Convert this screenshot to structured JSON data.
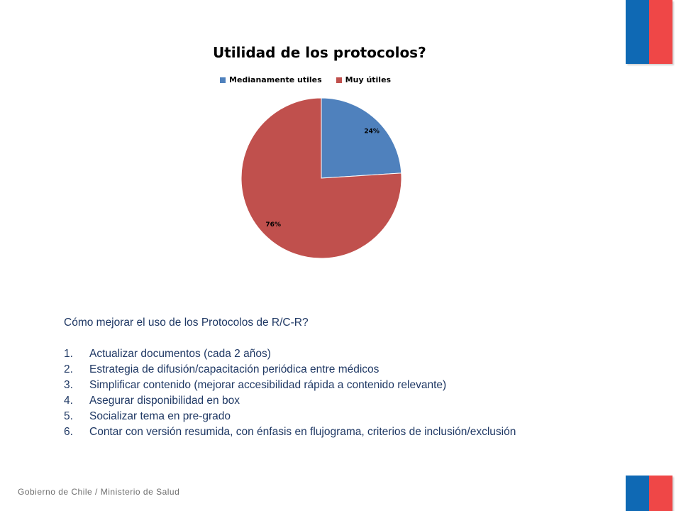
{
  "colors": {
    "flag_blue": "#0f69b4",
    "flag_red": "#ef4747",
    "slice_blue": "#4f81bd",
    "slice_red": "#c0504d",
    "text_navy": "#1f3864"
  },
  "chart_data": {
    "type": "pie",
    "title": "Utilidad de los protocolos?",
    "legend_position": "top",
    "categories": [
      "Medianamente utiles",
      "Muy útiles"
    ],
    "values": [
      24,
      76
    ],
    "data_labels": [
      "24%",
      "76%"
    ],
    "colors": [
      "#4f81bd",
      "#c0504d"
    ]
  },
  "section": {
    "heading": "Cómo mejorar el uso de los Protocolos de R/C-R?",
    "items": [
      {
        "num": "1.",
        "text": "Actualizar documentos (cada 2 años)"
      },
      {
        "num": "2.",
        "text": "Estrategia de difusión/capacitación periódica entre médicos"
      },
      {
        "num": "3.",
        "text": "Simplificar contenido (mejorar accesibilidad rápida a contenido relevante)"
      },
      {
        "num": "4.",
        "text": "Asegurar disponibilidad en box"
      },
      {
        "num": "5.",
        "text": "Socializar tema en pre-grado"
      },
      {
        "num": "6.",
        "text": "Contar con versión resumida, con énfasis en flujograma, criterios de inclusión/exclusión"
      }
    ]
  },
  "footer": {
    "text": "Gobierno de Chile / Ministerio de Salud"
  }
}
